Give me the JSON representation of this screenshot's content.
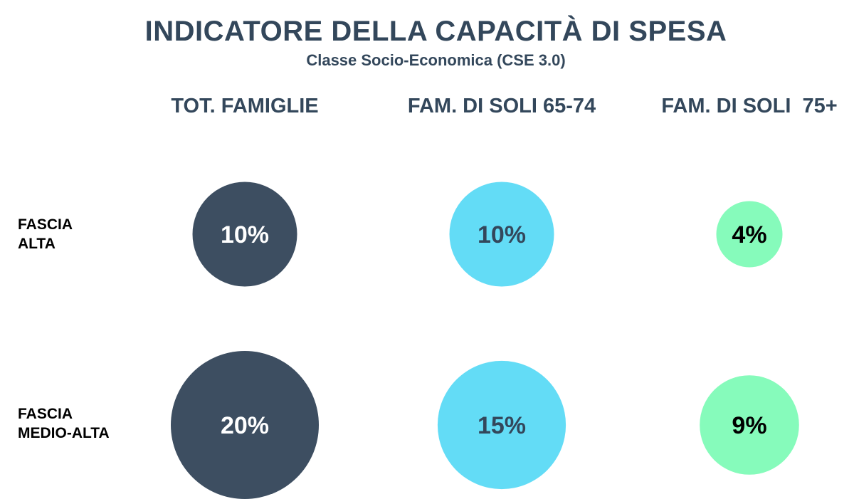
{
  "chart_data": {
    "type": "bubble-grid",
    "title": "INDICATORE DELLA CAPACITÀ DI SPESA",
    "subtitle": "Classe Socio-Economica (CSE 3.0)",
    "columns": [
      "TOT. FAMIGLIE",
      "FAM. DI SOLI 65-74",
      "FAM. DI SOLI  75+"
    ],
    "rows": [
      {
        "label_lines": [
          "FASCIA",
          "ALTA"
        ],
        "values": [
          10,
          10,
          4
        ],
        "labels": [
          "10%",
          "10%",
          "4%"
        ]
      },
      {
        "label_lines": [
          "FASCIA",
          "MEDIO-ALTA"
        ],
        "values": [
          20,
          15,
          9
        ],
        "labels": [
          "20%",
          "15%",
          "9%"
        ]
      }
    ],
    "colors": [
      "#3d4e61",
      "#63dcf6",
      "#86fbbb"
    ],
    "text_colors": [
      "#ffffff",
      "#33475b",
      "#000000"
    ]
  }
}
